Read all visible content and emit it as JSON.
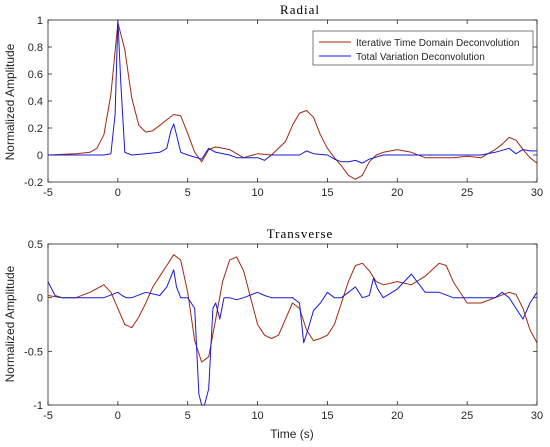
{
  "colors": {
    "itd": "#a0290f",
    "tvd": "#1a1ad6",
    "axis": "#262626"
  },
  "chart_data": [
    {
      "type": "line",
      "title": "Radial",
      "xlabel": "",
      "ylabel": "Normalized Amplitude",
      "xlim": [
        -5,
        30
      ],
      "ylim": [
        -0.2,
        1
      ],
      "xticks": [
        -5,
        0,
        5,
        10,
        15,
        20,
        25,
        30
      ],
      "xtick_labels": [
        "-5",
        "0",
        "5",
        "10",
        "15",
        "20",
        "25",
        "30"
      ],
      "yticks": [
        -0.2,
        0,
        0.2,
        0.4,
        0.6,
        0.8,
        1
      ],
      "ytick_labels": [
        "-0.2",
        "0",
        "0.2",
        "0.4",
        "0.6",
        "0.8",
        "1"
      ],
      "legend": {
        "placement": "top-right",
        "entries": [
          "Iterative Time Domain Deconvolution",
          "Total Variation Deconvolution"
        ]
      },
      "series": [
        {
          "name": "Iterative Time Domain Deconvolution",
          "x": [
            -5,
            -3,
            -2,
            -1.5,
            -1,
            -0.5,
            0,
            0.5,
            1,
            1.5,
            2,
            2.5,
            3,
            3.5,
            4,
            4.5,
            5,
            5.5,
            6,
            6.5,
            7,
            7.5,
            8,
            9,
            10,
            11,
            12,
            12.5,
            13,
            13.5,
            14,
            14.5,
            15,
            15.5,
            16,
            16.5,
            17,
            17.5,
            18,
            18.5,
            19,
            20,
            21,
            22,
            23,
            24,
            25,
            26,
            27,
            27.5,
            28,
            28.5,
            29,
            29.5,
            30
          ],
          "y": [
            0,
            0.01,
            0.02,
            0.05,
            0.15,
            0.45,
            0.98,
            0.78,
            0.42,
            0.22,
            0.17,
            0.18,
            0.22,
            0.26,
            0.3,
            0.29,
            0.16,
            0.02,
            -0.05,
            0.04,
            0.06,
            0.05,
            0.04,
            -0.02,
            0.01,
            0.0,
            0.1,
            0.22,
            0.31,
            0.33,
            0.28,
            0.15,
            0.05,
            -0.02,
            -0.08,
            -0.15,
            -0.18,
            -0.15,
            -0.05,
            0.0,
            0.02,
            0.04,
            0.02,
            -0.02,
            -0.02,
            -0.02,
            -0.01,
            -0.02,
            0.04,
            0.08,
            0.13,
            0.11,
            0.04,
            -0.02,
            -0.06
          ]
        },
        {
          "name": "Total Variation Deconvolution",
          "x": [
            -5,
            -1,
            -0.5,
            -0.2,
            0,
            0.2,
            0.5,
            1,
            2,
            3,
            3.5,
            3.8,
            4,
            4.2,
            4.5,
            5,
            6,
            6.5,
            7,
            8,
            8.5,
            9,
            10,
            10.5,
            11,
            12,
            13,
            13.5,
            14,
            15,
            15.5,
            16,
            16.5,
            17,
            17.5,
            18,
            19,
            20,
            21,
            22,
            23,
            24,
            25,
            26,
            27,
            28,
            28.5,
            29,
            29.5,
            30
          ],
          "y": [
            0,
            0,
            0.01,
            0.3,
            1.0,
            0.55,
            0.02,
            0.0,
            0.01,
            0.02,
            0.05,
            0.18,
            0.23,
            0.15,
            0.02,
            0.0,
            -0.03,
            0.05,
            0.02,
            0.0,
            -0.02,
            -0.02,
            -0.02,
            -0.04,
            0.0,
            0.0,
            0.0,
            0.03,
            0.01,
            0.0,
            -0.03,
            -0.05,
            -0.05,
            -0.04,
            -0.06,
            -0.03,
            0.0,
            0.0,
            0.0,
            0.0,
            0.0,
            0.0,
            0.0,
            0.0,
            0.02,
            0.05,
            0.01,
            0.04,
            0.03,
            0.03
          ]
        }
      ]
    },
    {
      "type": "line",
      "title": "Transverse",
      "xlabel": "Time (s)",
      "ylabel": "Normalized Amplitude",
      "xlim": [
        -5,
        30
      ],
      "ylim": [
        -1,
        0.5
      ],
      "xticks": [
        -5,
        0,
        5,
        10,
        15,
        20,
        25,
        30
      ],
      "xtick_labels": [
        "-5",
        "0",
        "5",
        "10",
        "15",
        "20",
        "25",
        "30"
      ],
      "yticks": [
        -1,
        -0.5,
        0,
        0.5
      ],
      "ytick_labels": [
        "-1",
        "-0.5",
        "0",
        "0.5"
      ],
      "series": [
        {
          "name": "Iterative Time Domain Deconvolution",
          "x": [
            -5,
            -4,
            -3,
            -2,
            -1,
            -0.5,
            0,
            0.5,
            1,
            1.5,
            2,
            2.5,
            3,
            3.5,
            4,
            4.5,
            5,
            5.5,
            6,
            6.5,
            7,
            7.5,
            8,
            8.5,
            9,
            9.5,
            10,
            10.5,
            11,
            11.5,
            12,
            12.5,
            13,
            13.5,
            14,
            14.5,
            15,
            15.5,
            16,
            16.5,
            17,
            17.5,
            18,
            18.5,
            19,
            20,
            21,
            22,
            23,
            23.5,
            24,
            25,
            26,
            27,
            28,
            28.5,
            29,
            29.5,
            30
          ],
          "y": [
            0.02,
            0.0,
            0.0,
            0.05,
            0.12,
            0.05,
            -0.1,
            -0.25,
            -0.28,
            -0.18,
            -0.05,
            0.1,
            0.2,
            0.3,
            0.4,
            0.35,
            0.05,
            -0.4,
            -0.6,
            -0.55,
            -0.2,
            0.15,
            0.35,
            0.38,
            0.25,
            0.0,
            -0.25,
            -0.35,
            -0.38,
            -0.35,
            -0.2,
            -0.05,
            -0.1,
            -0.3,
            -0.4,
            -0.38,
            -0.35,
            -0.25,
            -0.05,
            0.15,
            0.3,
            0.32,
            0.25,
            0.15,
            0.12,
            0.15,
            0.12,
            0.2,
            0.32,
            0.3,
            0.15,
            -0.05,
            -0.05,
            0.0,
            0.05,
            0.03,
            -0.1,
            -0.3,
            -0.42
          ]
        },
        {
          "name": "Total Variation Deconvolution",
          "x": [
            -5,
            -4.5,
            -4,
            -3,
            -2,
            -1,
            0,
            0.3,
            0.6,
            1,
            2,
            3,
            3.5,
            4,
            4.2,
            4.5,
            5,
            5.5,
            5.8,
            6,
            6.2,
            6.5,
            6.8,
            7,
            7.3,
            7.6,
            8,
            8.5,
            9,
            10,
            10.5,
            11,
            12,
            12.5,
            13,
            13.3,
            13.6,
            14,
            14.5,
            15,
            15.5,
            16,
            16.5,
            17,
            17.5,
            18,
            18.3,
            18.6,
            19,
            20,
            21,
            22,
            23,
            24,
            25,
            26,
            27,
            27.5,
            28,
            28.5,
            29,
            29.5,
            30
          ],
          "y": [
            0.15,
            0.02,
            0.0,
            0.0,
            0.0,
            0.0,
            0.05,
            0.02,
            0.0,
            0.0,
            0.05,
            0.02,
            0.1,
            0.26,
            0.1,
            0.0,
            0.0,
            -0.1,
            -0.9,
            -1.0,
            -1.0,
            -0.85,
            -0.1,
            -0.05,
            -0.2,
            0.0,
            0.0,
            -0.02,
            0.0,
            0.05,
            0.02,
            0.0,
            0.0,
            0.0,
            -0.05,
            -0.42,
            -0.3,
            -0.12,
            -0.05,
            0.05,
            0.0,
            0.0,
            0.05,
            0.1,
            0.0,
            0.02,
            0.18,
            0.08,
            0.0,
            0.08,
            0.22,
            0.05,
            0.05,
            0.0,
            0.0,
            0.0,
            0.0,
            0.05,
            0.0,
            -0.1,
            -0.2,
            -0.05,
            0.05
          ]
        }
      ]
    }
  ]
}
